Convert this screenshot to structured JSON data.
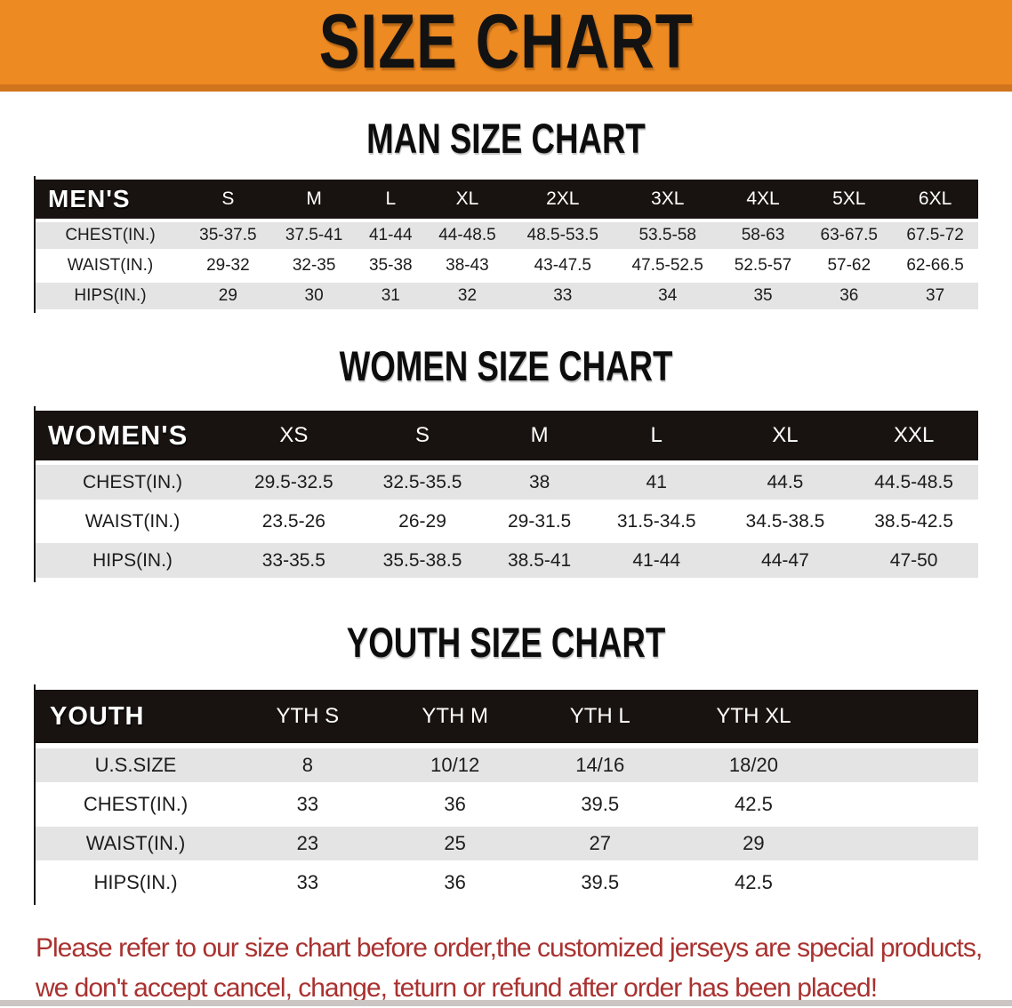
{
  "banner": {
    "title": "SIZE CHART"
  },
  "colors": {
    "banner_orange": "#ee8a22",
    "banner_orange_border": "#d0741e",
    "table_header_black": "#181310",
    "row_gray": "#e4e4e4",
    "disclaimer_red": "#a93230"
  },
  "sections": {
    "men": {
      "heading": "MAN SIZE CHART",
      "table": {
        "label_header": "MEN'S",
        "size_headers": [
          "S",
          "M",
          "L",
          "XL",
          "2XL",
          "3XL",
          "4XL",
          "5XL",
          "6XL"
        ],
        "rows": [
          {
            "label": "CHEST(IN.)",
            "values": [
              "35-37.5",
              "37.5-41",
              "41-44",
              "44-48.5",
              "48.5-53.5",
              "53.5-58",
              "58-63",
              "63-67.5",
              "67.5-72"
            ]
          },
          {
            "label": "WAIST(IN.)",
            "values": [
              "29-32",
              "32-35",
              "35-38",
              "38-43",
              "43-47.5",
              "47.5-52.5",
              "52.5-57",
              "57-62",
              "62-66.5"
            ]
          },
          {
            "label": "HIPS(IN.)",
            "values": [
              "29",
              "30",
              "31",
              "32",
              "33",
              "34",
              "35",
              "36",
              "37"
            ]
          }
        ]
      }
    },
    "women": {
      "heading": "WOMEN SIZE CHART",
      "table": {
        "label_header": "WOMEN'S",
        "size_headers": [
          "XS",
          "S",
          "M",
          "L",
          "XL",
          "XXL"
        ],
        "rows": [
          {
            "label": "CHEST(IN.)",
            "values": [
              "29.5-32.5",
              "32.5-35.5",
              "38",
              "41",
              "44.5",
              "44.5-48.5"
            ]
          },
          {
            "label": "WAIST(IN.)",
            "values": [
              "23.5-26",
              "26-29",
              "29-31.5",
              "31.5-34.5",
              "34.5-38.5",
              "38.5-42.5"
            ]
          },
          {
            "label": "HIPS(IN.)",
            "values": [
              "33-35.5",
              "35.5-38.5",
              "38.5-41",
              "41-44",
              "44-47",
              "47-50"
            ]
          }
        ]
      }
    },
    "youth": {
      "heading": "YOUTH SIZE CHART",
      "table": {
        "label_header": "YOUTH",
        "size_headers": [
          "YTH S",
          "YTH M",
          "YTH L",
          "YTH XL"
        ],
        "rows": [
          {
            "label": "U.S.SIZE",
            "values": [
              "8",
              "10/12",
              "14/16",
              "18/20"
            ]
          },
          {
            "label": "CHEST(IN.)",
            "values": [
              "33",
              "36",
              "39.5",
              "42.5"
            ]
          },
          {
            "label": "WAIST(IN.)",
            "values": [
              "23",
              "25",
              "27",
              "29"
            ]
          },
          {
            "label": "HIPS(IN.)",
            "values": [
              "33",
              "36",
              "39.5",
              "42.5"
            ]
          }
        ]
      }
    }
  },
  "disclaimer": {
    "line1": "Please refer to our size chart before order,the customized jerseys are special products,",
    "line2": "we don't accept cancel, change, teturn or refund after order has been placed!"
  }
}
